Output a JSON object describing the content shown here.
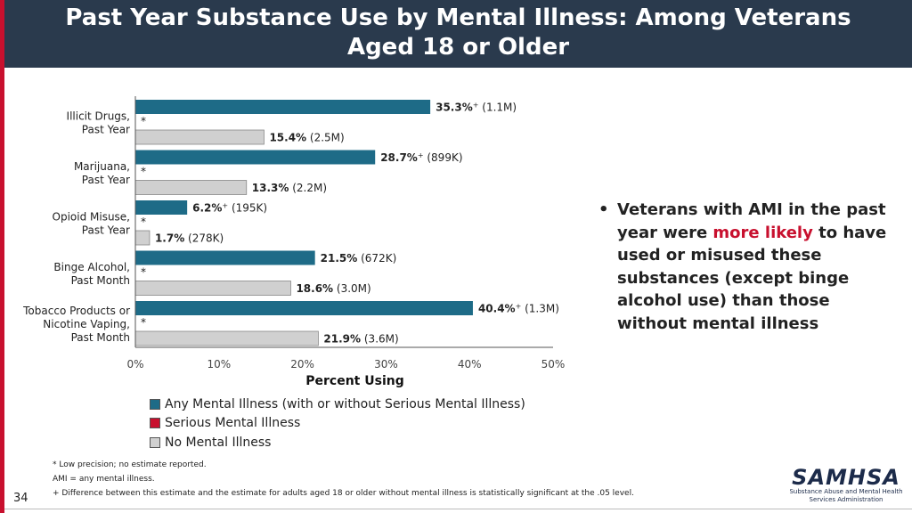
{
  "slide": {
    "title": "Past Year Substance Use by Mental Illness: Among Veterans Aged 18 or Older",
    "page_number": "34"
  },
  "bullet": {
    "before": "Veterans with AMI in the past year were ",
    "emphasis": "more likely",
    "after": " to have used or misused these substances (except binge alcohol use) than those without mental illness"
  },
  "footnotes": [
    "* Low precision; no estimate reported.",
    "AMI = any mental illness.",
    "+ Difference between this estimate and the estimate for adults aged 18 or older without mental illness is statistically significant at the .05 level."
  ],
  "logo": {
    "word": "SAMHSA",
    "subtitle": "Substance Abuse and Mental Health Services Administration"
  },
  "colors": {
    "any_mental_illness": "#1e6b87",
    "serious_mental_illness": "#c8102e",
    "no_mental_illness": "#d0d0d0",
    "title_bar": "#2a3a4d",
    "accent": "#c8102e"
  },
  "chart_data": {
    "type": "bar",
    "orientation": "horizontal",
    "categories": [
      [
        "Illicit Drugs,",
        "Past Year"
      ],
      [
        "Marijuana,",
        "Past Year"
      ],
      [
        "Opioid Misuse,",
        "Past Year"
      ],
      [
        "Binge Alcohol,",
        "Past Month"
      ],
      [
        "Tobacco Products or",
        "Nicotine Vaping,",
        "Past Month"
      ]
    ],
    "series": [
      {
        "name": "Any Mental Illness (with or without Serious Mental Illness)",
        "color": "#1e6b87",
        "values": [
          35.3,
          28.7,
          6.2,
          21.5,
          40.4
        ],
        "labels": [
          "35.3%",
          "28.7%",
          "6.2%",
          "21.5%",
          "40.4%"
        ],
        "significance": [
          "+",
          "+",
          "+",
          "",
          "+"
        ],
        "counts": [
          "(1.1M)",
          "(899K)",
          "(195K)",
          "(672K)",
          "(1.3M)"
        ]
      },
      {
        "name": "Serious Mental Illness",
        "color": "#c8102e",
        "values": [
          null,
          null,
          null,
          null,
          null
        ],
        "labels": [
          "*",
          "*",
          "*",
          "*",
          "*"
        ]
      },
      {
        "name": "No Mental Illness",
        "color": "#d0d0d0",
        "values": [
          15.4,
          13.3,
          1.7,
          18.6,
          21.9
        ],
        "labels": [
          "15.4%",
          "13.3%",
          "1.7%",
          "18.6%",
          "21.9%"
        ],
        "counts": [
          "(2.5M)",
          "(2.2M)",
          "(278K)",
          "(3.0M)",
          "(3.6M)"
        ]
      }
    ],
    "xlabel": "Percent Using",
    "xlim": [
      0,
      50
    ],
    "xticks": [
      "0%",
      "10%",
      "20%",
      "30%",
      "40%",
      "50%"
    ],
    "grid": false,
    "legend_position": "bottom"
  }
}
